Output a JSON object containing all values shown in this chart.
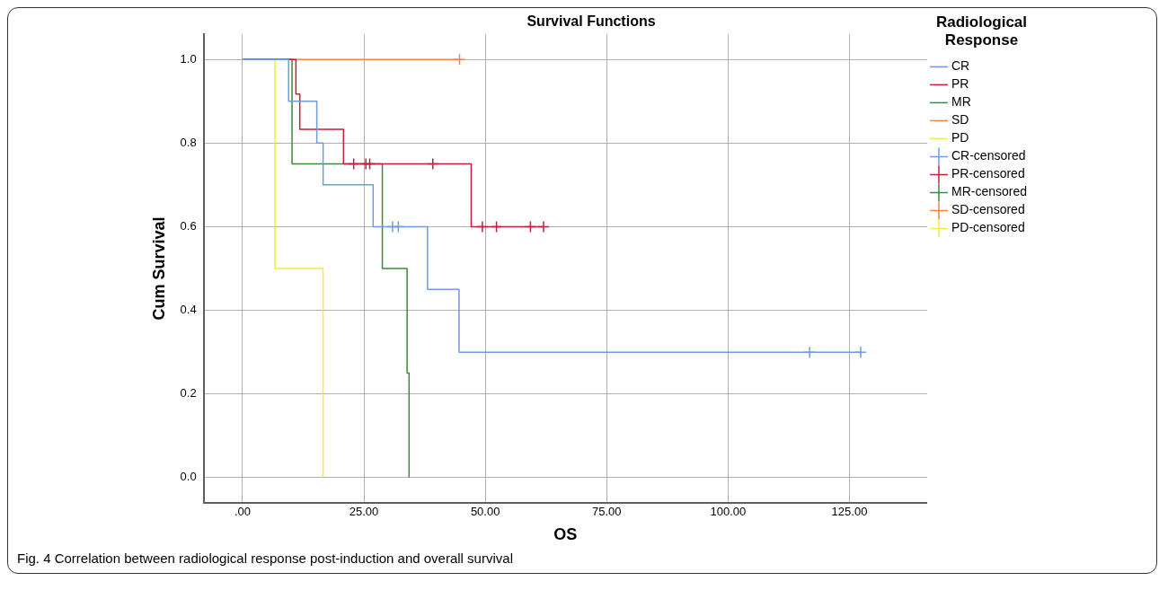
{
  "chart_data": {
    "type": "step",
    "title": "Survival Functions",
    "xlabel": "OS",
    "ylabel": "Cum Survival",
    "legend_title": "Radiological Response",
    "legend": "right",
    "grid": true,
    "xlim": [
      -8,
      141
    ],
    "xticks": [
      {
        "value": 0,
        "label": ".00"
      },
      {
        "value": 25,
        "label": "25.00"
      },
      {
        "value": 50,
        "label": "50.00"
      },
      {
        "value": 75,
        "label": "75.00"
      },
      {
        "value": 100,
        "label": "100.00"
      },
      {
        "value": 125,
        "label": "125.00"
      }
    ],
    "ylim": [
      -0.06,
      1.06
    ],
    "yticks": [
      {
        "value": 0,
        "label": "0.0"
      },
      0.2,
      0.4,
      0.6,
      0.8,
      {
        "value": 1,
        "label": "1.0"
      }
    ],
    "series": [
      {
        "name": "CR",
        "marker": "none",
        "color": "#6f9be0",
        "x": [
          0,
          9.5,
          15.3,
          16.6,
          26.9,
          38.1,
          44.6,
          127.3
        ],
        "values": [
          1,
          0.9,
          0.8,
          0.7,
          0.6,
          0.45,
          0.3,
          0.3
        ]
      },
      {
        "name": "PR",
        "marker": "none",
        "color": "#c41e3a",
        "x": [
          0,
          11.0,
          11.8,
          20.8,
          47.1,
          62.0
        ],
        "values": [
          1,
          0.917,
          0.833,
          0.75,
          0.6,
          0.6
        ]
      },
      {
        "name": "MR",
        "marker": "none",
        "color": "#3c8a3e",
        "x": [
          0,
          10.2,
          28.8,
          33.9,
          34.3
        ],
        "values": [
          1,
          0.75,
          0.5,
          0.25,
          0
        ]
      },
      {
        "name": "SD",
        "marker": "none",
        "color": "#f2844a",
        "x": [
          0,
          44.7
        ],
        "values": [
          1,
          1
        ]
      },
      {
        "name": "PD",
        "marker": "none",
        "color": "#eeee44",
        "x": [
          0,
          6.7,
          16.6
        ],
        "values": [
          1,
          0.5,
          0
        ]
      },
      {
        "name": "CR-censored",
        "type": "scatter",
        "marker": "cross",
        "color": "#6f9be0",
        "x": [
          30.9,
          32.1,
          116.8,
          127.3
        ],
        "values": [
          0.6,
          0.6,
          0.3,
          0.3
        ]
      },
      {
        "name": "PR-censored",
        "type": "scatter",
        "marker": "cross",
        "color": "#c41e3a",
        "x": [
          22.9,
          25.4,
          26.2,
          39.2,
          49.4,
          52.3,
          59.3,
          62.0
        ],
        "values": [
          0.75,
          0.75,
          0.75,
          0.75,
          0.6,
          0.6,
          0.6,
          0.6
        ]
      },
      {
        "name": "MR-censored",
        "type": "scatter",
        "marker": "cross",
        "color": "#3c8a3e"
      },
      {
        "name": "SD-censored",
        "type": "scatter",
        "marker": "cross",
        "color": "#f2844a",
        "x": [
          44.7
        ],
        "values": [
          1
        ]
      },
      {
        "name": "PD-censored",
        "type": "scatter",
        "marker": "cross",
        "color": "#eeee44"
      }
    ],
    "annotations": [
      "Fig. 4 Correlation between radiological response post-induction and overall survival"
    ]
  }
}
